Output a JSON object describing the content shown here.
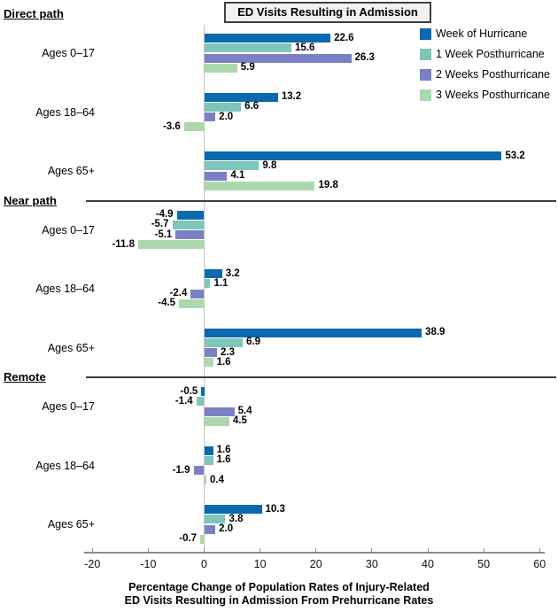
{
  "chart_data": {
    "type": "bar",
    "orientation": "horizontal",
    "title": "ED Visits Resulting in Admission",
    "xlabel_lines": [
      "Percentage Change of Population Rates of Injury-Related",
      "ED Visits Resulting in Admission From Prehurricane Rates"
    ],
    "xlim": [
      -20,
      60
    ],
    "xticks": [
      -20,
      -10,
      0,
      10,
      20,
      30,
      40,
      50,
      60
    ],
    "grid": "zero-baseline-only",
    "legend_position": "top-right",
    "series_names": [
      "Week of Hurricane",
      "1 Week Posthurricane",
      "2 Weeks Posthurricane",
      "3 Weeks Posthurricane"
    ],
    "series_colors": [
      "#0A6AAD",
      "#7EC5BC",
      "#7B80C5",
      "#ACD9AC"
    ],
    "sections": [
      {
        "label": "Direct path",
        "groups": [
          {
            "label": "Ages 0–17",
            "values": [
              22.6,
              15.6,
              26.3,
              5.9
            ]
          },
          {
            "label": "Ages 18–64",
            "values": [
              13.2,
              6.6,
              2.0,
              -3.6
            ]
          },
          {
            "label": "Ages 65+",
            "values": [
              53.2,
              9.8,
              4.1,
              19.8
            ]
          }
        ]
      },
      {
        "label": "Near path",
        "groups": [
          {
            "label": "Ages 0–17",
            "values": [
              -4.9,
              -5.7,
              -5.1,
              -11.8
            ]
          },
          {
            "label": "Ages 18–64",
            "values": [
              3.2,
              1.1,
              -2.4,
              -4.5
            ]
          },
          {
            "label": "Ages 65+",
            "values": [
              38.9,
              6.9,
              2.3,
              1.6
            ]
          }
        ]
      },
      {
        "label": "Remote",
        "groups": [
          {
            "label": "Ages 0–17",
            "values": [
              -0.5,
              -1.4,
              5.4,
              4.5
            ]
          },
          {
            "label": "Ages 18–64",
            "values": [
              1.6,
              1.6,
              -1.9,
              0.4
            ]
          },
          {
            "label": "Ages 65+",
            "values": [
              10.3,
              3.8,
              2.0,
              -0.7
            ]
          }
        ]
      }
    ]
  },
  "colors": {
    "title_box_bg": "#F1F1F1",
    "title_box_border": "#3F3F3F",
    "axis_line": "#8C8C8C",
    "zero_line": "#C3C3C3",
    "section_divider": "#3F3F3F"
  }
}
